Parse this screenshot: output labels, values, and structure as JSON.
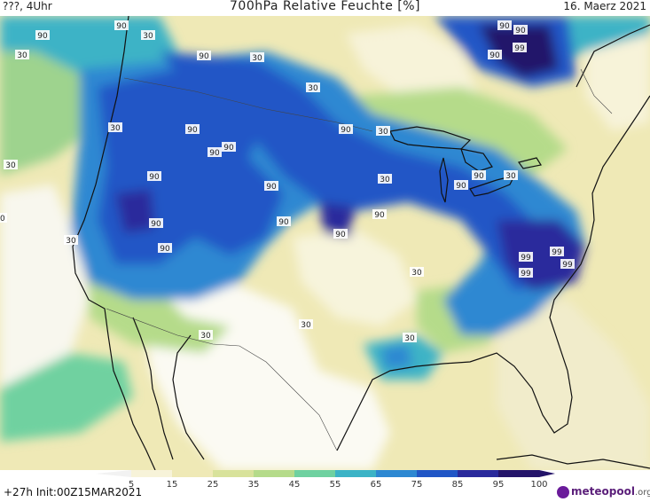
{
  "header": {
    "left": "???, 4Uhr",
    "title": "700hPa Relative Feuchte [%]",
    "date": "16. Maerz 2021"
  },
  "footer": {
    "run": "+27h Init:00Z15MAR2021",
    "logo_brand": "meteopool",
    "logo_tld": ".org"
  },
  "colorbar": {
    "ticks": [
      "5",
      "15",
      "25",
      "35",
      "45",
      "55",
      "65",
      "75",
      "85",
      "95",
      "100"
    ],
    "colors": [
      "#f2f2f2",
      "#f7f3d9",
      "#efe9b6",
      "#d8e29b",
      "#b5db8a",
      "#6fd1a0",
      "#3cb3c6",
      "#2d88d2",
      "#2156c6",
      "#2a2a9c",
      "#24146a"
    ]
  },
  "contour_labels": [
    "90",
    "90",
    "90",
    "90",
    "90",
    "90",
    "90",
    "90",
    "90",
    "90",
    "90",
    "90",
    "90",
    "90",
    "90",
    "90",
    "90",
    "90",
    "90",
    "99",
    "99",
    "99",
    "99",
    "99",
    "30",
    "30",
    "30",
    "30",
    "30",
    "30",
    "30",
    "30",
    "30",
    "30",
    "30",
    "30",
    "30",
    "30",
    "30"
  ]
}
